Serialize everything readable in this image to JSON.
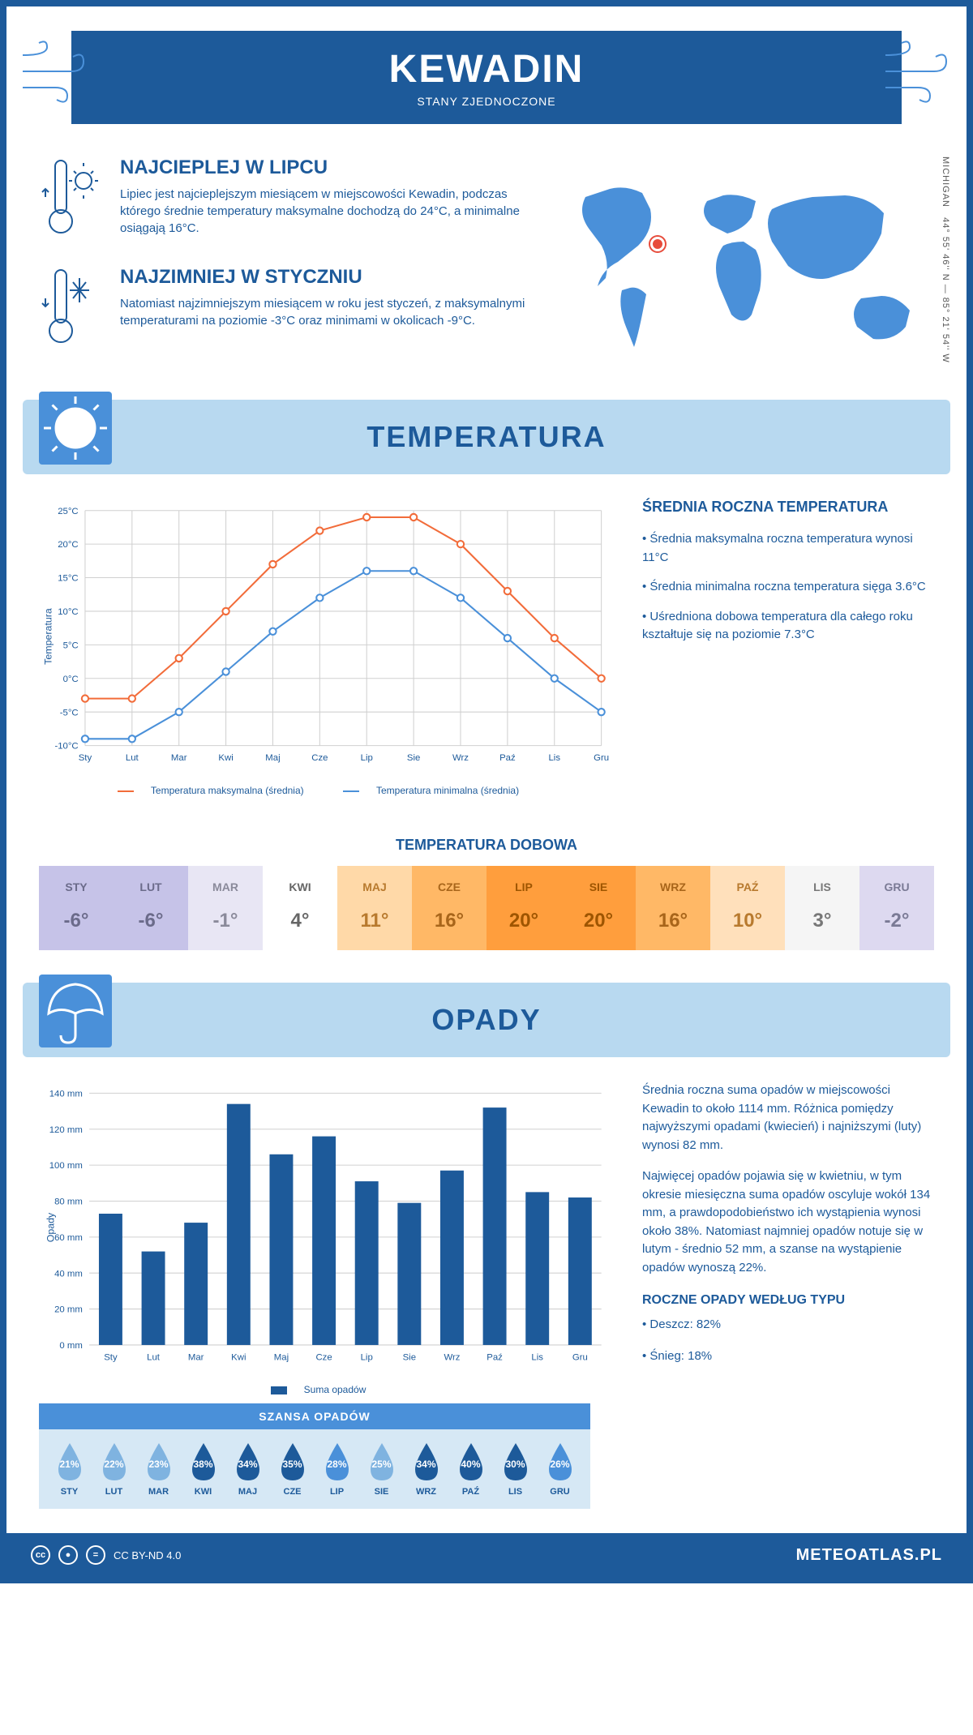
{
  "header": {
    "city": "KEWADIN",
    "country": "STANY ZJEDNOCZONE"
  },
  "coords": {
    "text": "44° 55' 46'' N — 85° 21' 54'' W",
    "region": "MICHIGAN"
  },
  "warmest": {
    "title": "NAJCIEPLEJ W LIPCU",
    "text": "Lipiec jest najcieplejszym miesiącem w miejscowości Kewadin, podczas którego średnie temperatury maksymalne dochodzą do 24°C, a minimalne osiągają 16°C."
  },
  "coldest": {
    "title": "NAJZIMNIEJ W STYCZNIU",
    "text": "Natomiast najzimniejszym miesiącem w roku jest styczeń, z maksymalnymi temperaturami na poziomie -3°C oraz minimami w okolicach -9°C."
  },
  "temp_section": {
    "title": "TEMPERATURA"
  },
  "temp_chart": {
    "type": "line",
    "months": [
      "Sty",
      "Lut",
      "Mar",
      "Kwi",
      "Maj",
      "Cze",
      "Lip",
      "Sie",
      "Wrz",
      "Paź",
      "Lis",
      "Gru"
    ],
    "max_series": [
      -3,
      -3,
      3,
      10,
      17,
      22,
      24,
      24,
      20,
      13,
      6,
      0
    ],
    "min_series": [
      -9,
      -9,
      -5,
      1,
      7,
      12,
      16,
      16,
      12,
      6,
      0,
      -5
    ],
    "max_color": "#f26c3a",
    "min_color": "#4a90d9",
    "ylim": [
      -10,
      25
    ],
    "ytick_step": 5,
    "y_unit": "°C",
    "y_title": "Temperatura",
    "grid_color": "#d8d8d8",
    "legend_max": "Temperatura maksymalna (średnia)",
    "legend_min": "Temperatura minimalna (średnia)",
    "marker": "circle",
    "line_width": 2
  },
  "temp_info": {
    "title": "ŚREDNIA ROCZNA TEMPERATURA",
    "b1": "• Średnia maksymalna roczna temperatura wynosi 11°C",
    "b2": "• Średnia minimalna roczna temperatura sięga 3.6°C",
    "b3": "• Uśredniona dobowa temperatura dla całego roku kształtuje się na poziomie 7.3°C"
  },
  "daily": {
    "title": "TEMPERATURA DOBOWA",
    "months": [
      "STY",
      "LUT",
      "MAR",
      "KWI",
      "MAJ",
      "CZE",
      "LIP",
      "SIE",
      "WRZ",
      "PAŹ",
      "LIS",
      "GRU"
    ],
    "values": [
      "-6°",
      "-6°",
      "-1°",
      "4°",
      "11°",
      "16°",
      "20°",
      "20°",
      "16°",
      "10°",
      "3°",
      "-2°"
    ],
    "bg_colors": [
      "#c6c3e8",
      "#c6c3e8",
      "#e8e6f4",
      "#ffffff",
      "#ffd9a8",
      "#ffb866",
      "#ff9e3d",
      "#ff9e3d",
      "#ffb866",
      "#ffe0bb",
      "#f5f5f5",
      "#ddd9f0"
    ],
    "text_colors": [
      "#6b6b8a",
      "#6b6b8a",
      "#8a8a9a",
      "#666",
      "#b87a2e",
      "#a8651a",
      "#9e5500",
      "#9e5500",
      "#a8651a",
      "#b87a2e",
      "#777",
      "#7a7a95"
    ]
  },
  "precip_section": {
    "title": "OPADY"
  },
  "precip_chart": {
    "type": "bar",
    "months": [
      "Sty",
      "Lut",
      "Mar",
      "Kwi",
      "Maj",
      "Cze",
      "Lip",
      "Sie",
      "Wrz",
      "Paź",
      "Lis",
      "Gru"
    ],
    "values": [
      73,
      52,
      68,
      134,
      106,
      116,
      91,
      79,
      97,
      132,
      85,
      82
    ],
    "bar_color": "#1d5a9a",
    "ylim": [
      0,
      140
    ],
    "ytick_step": 20,
    "y_unit": " mm",
    "y_title": "Opady",
    "grid_color": "#d8d8d8",
    "legend": "Suma opadów",
    "bar_width": 0.55
  },
  "precip_info": {
    "p1": "Średnia roczna suma opadów w miejscowości Kewadin to około 1114 mm. Różnica pomiędzy najwyższymi opadami (kwiecień) i najniższymi (luty) wynosi 82 mm.",
    "p2": "Najwięcej opadów pojawia się w kwietniu, w tym okresie miesięczna suma opadów oscyluje wokół 134 mm, a prawdopodobieństwo ich wystąpienia wynosi około 38%. Natomiast najmniej opadów notuje się w lutym - średnio 52 mm, a szanse na wystąpienie opadów wynoszą 22%.",
    "type_title": "ROCZNE OPADY WEDŁUG TYPU",
    "rain": "• Deszcz: 82%",
    "snow": "• Śnieg: 18%"
  },
  "chance": {
    "title": "SZANSA OPADÓW",
    "months": [
      "STY",
      "LUT",
      "MAR",
      "KWI",
      "MAJ",
      "CZE",
      "LIP",
      "SIE",
      "WRZ",
      "PAŹ",
      "LIS",
      "GRU"
    ],
    "values": [
      "21%",
      "22%",
      "23%",
      "38%",
      "34%",
      "35%",
      "28%",
      "25%",
      "34%",
      "40%",
      "30%",
      "26%"
    ],
    "drop_colors": [
      "#7fb3e0",
      "#7fb3e0",
      "#7fb3e0",
      "#1d5a9a",
      "#1d5a9a",
      "#1d5a9a",
      "#4a90d9",
      "#7fb3e0",
      "#1d5a9a",
      "#1d5a9a",
      "#1d5a9a",
      "#4a90d9"
    ]
  },
  "footer": {
    "license": "CC BY-ND 4.0",
    "site": "METEOATLAS.PL"
  },
  "colors": {
    "primary": "#1d5a9a",
    "light_blue": "#b8d9f0",
    "mid_blue": "#4a90d9"
  }
}
